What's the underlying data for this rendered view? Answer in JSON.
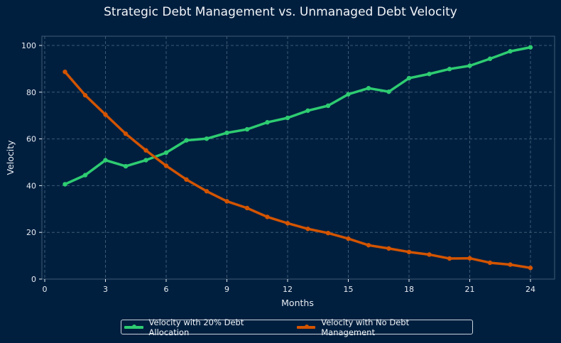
{
  "chart_data": {
    "type": "line",
    "title": "Strategic Debt Management vs. Unmanaged Debt Velocity",
    "xlabel": "Months",
    "ylabel": "Velocity",
    "xlim": [
      0,
      24
    ],
    "ylim": [
      0,
      100
    ],
    "xticks": [
      0,
      3,
      6,
      9,
      12,
      15,
      18,
      21,
      24
    ],
    "yticks": [
      0,
      20,
      40,
      60,
      80,
      100
    ],
    "grid": true,
    "legend_position": "bottom-center",
    "x": [
      1,
      2,
      3,
      4,
      5,
      6,
      7,
      8,
      9,
      10,
      11,
      12,
      13,
      14,
      15,
      16,
      17,
      18,
      19,
      20,
      21,
      22,
      23,
      24
    ],
    "series": [
      {
        "name": "Velocity with 20% Debt Allocation",
        "color": "#2ecc71",
        "values": [
          40.6,
          44.5,
          50.9,
          48.3,
          50.9,
          54.1,
          59.4,
          60.1,
          62.6,
          64.1,
          67.1,
          69.0,
          72.1,
          74.2,
          79.1,
          81.7,
          80.2,
          86.0,
          87.8,
          89.9,
          91.3,
          94.3,
          97.5,
          99.2
        ]
      },
      {
        "name": "Velocity with No Debt Management",
        "color": "#d35400",
        "values": [
          88.7,
          78.7,
          70.4,
          62.2,
          55.1,
          48.5,
          42.6,
          37.6,
          33.3,
          30.4,
          26.6,
          23.9,
          21.5,
          19.7,
          17.3,
          14.5,
          13.1,
          11.6,
          10.5,
          8.8,
          8.9,
          7.0,
          6.2,
          4.8
        ]
      }
    ]
  },
  "colors": {
    "background": "#001f3f",
    "grid": "#3d5a73",
    "spine": "#3f5b75"
  }
}
